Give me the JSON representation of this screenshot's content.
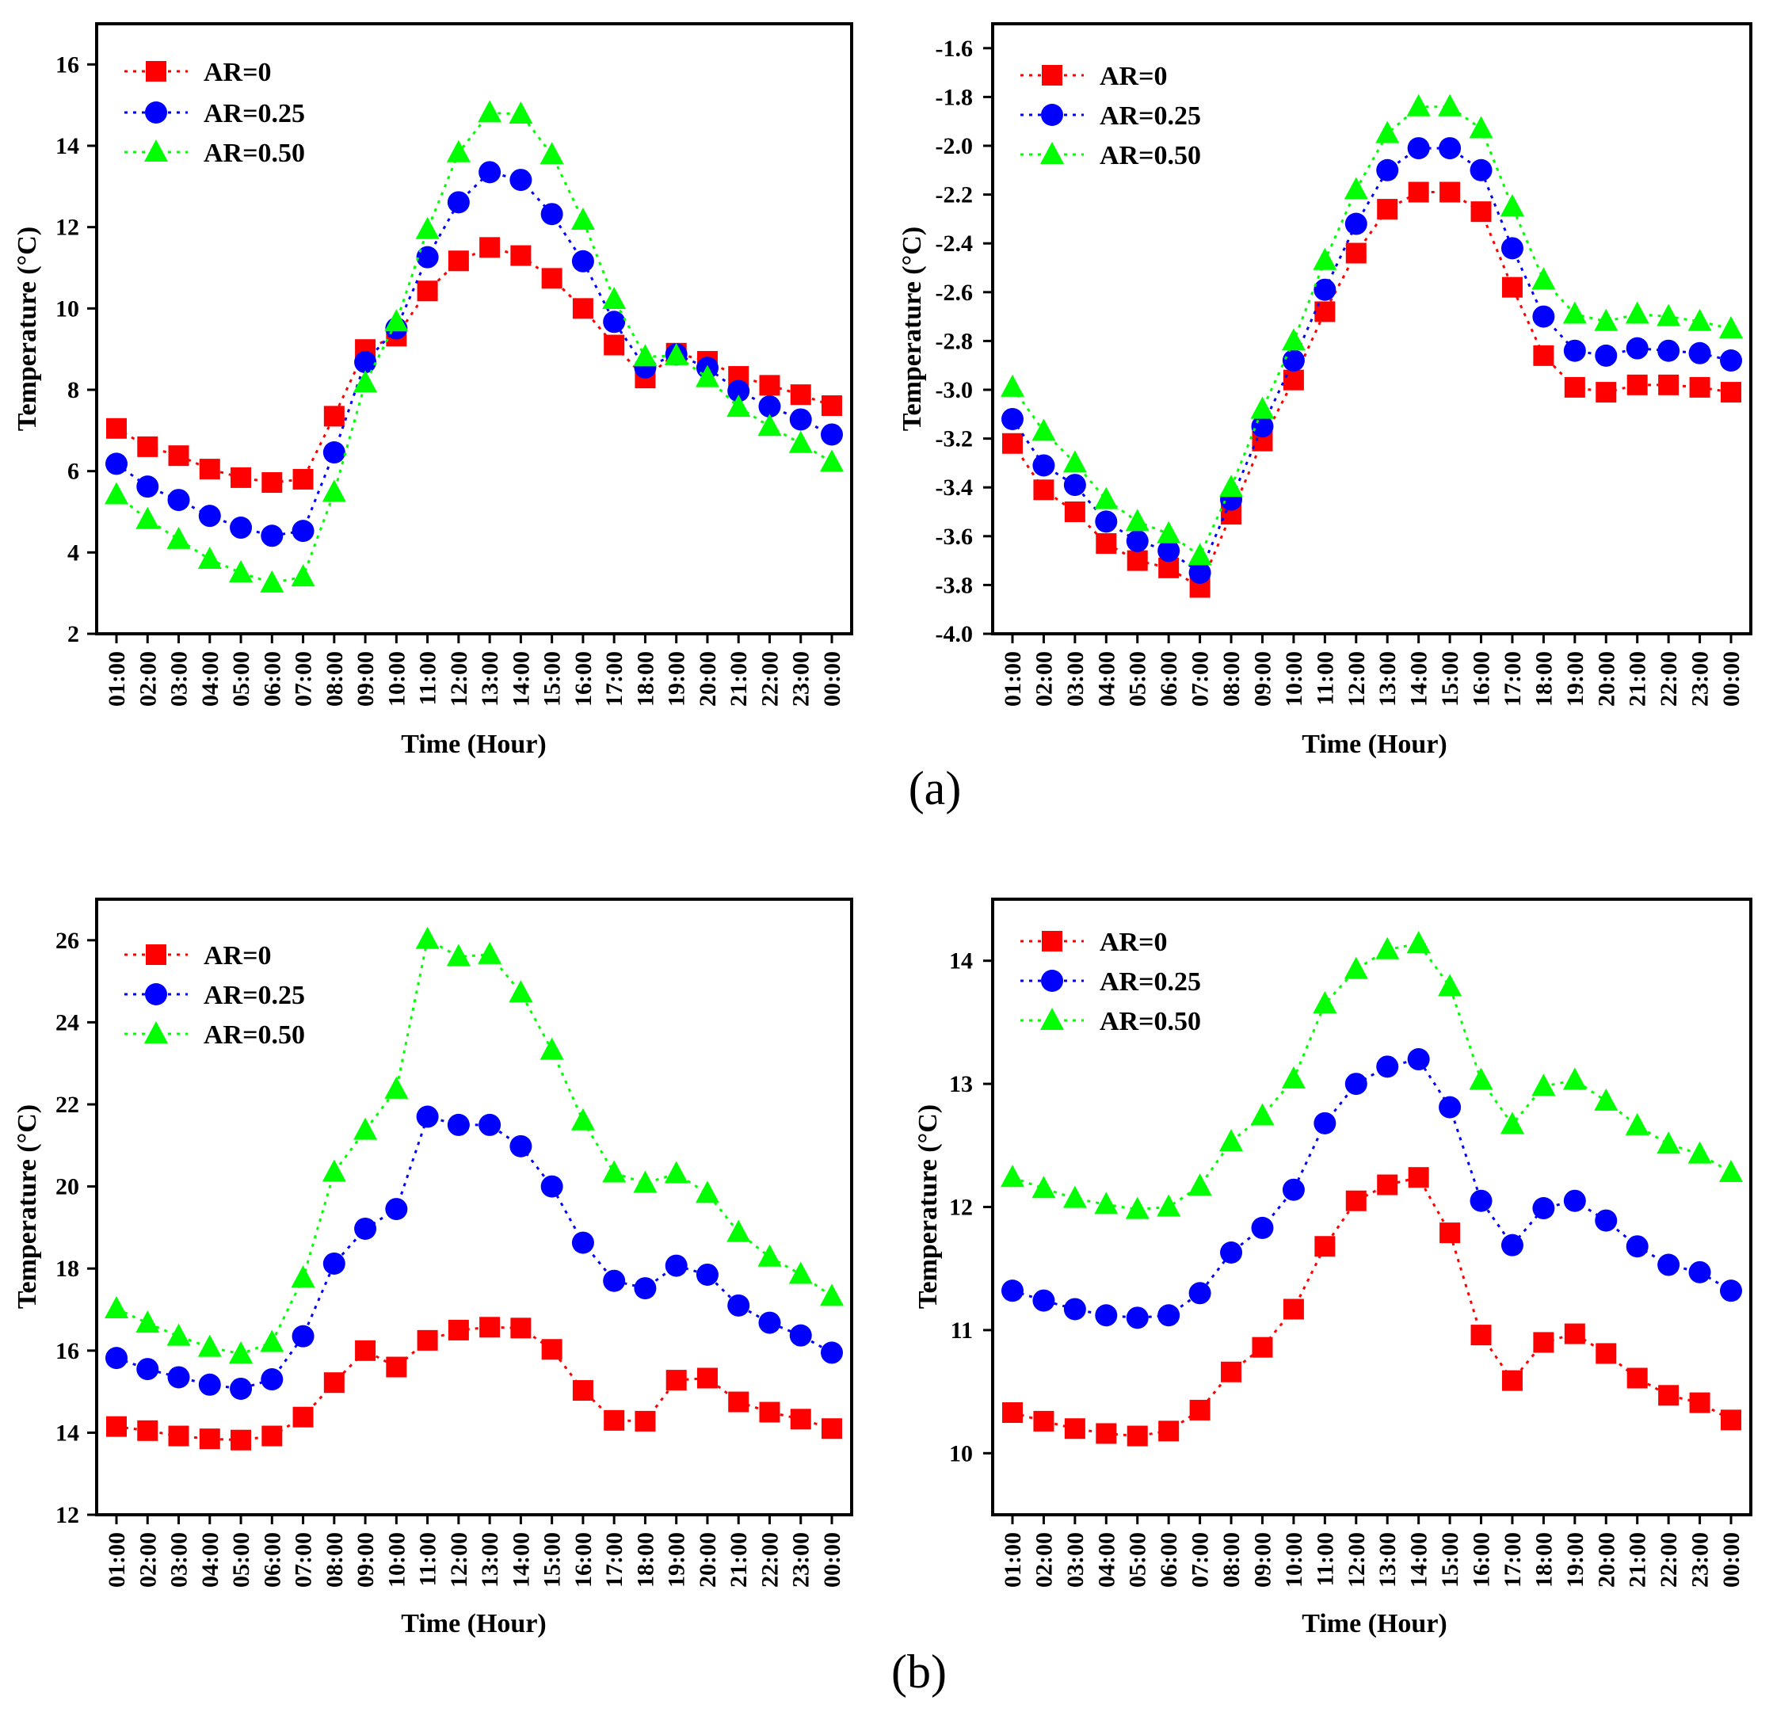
{
  "colors": {
    "ar0": "#ff0000",
    "ar025": "#0000ff",
    "ar050": "#00ff00",
    "axis": "#000000"
  },
  "panel_labels": {
    "a": "(a)",
    "b": "(b)"
  },
  "chart_data": [
    {
      "type": "line",
      "panel": "(a) left",
      "title": "",
      "xlabel": "Time (Hour)",
      "ylabel": "Temperature (°C)",
      "ylim": [
        2,
        17
      ],
      "yticks": [
        2,
        4,
        6,
        8,
        10,
        12,
        14,
        16
      ],
      "ytick_labels": [
        "2",
        "4",
        "6",
        "8",
        "10",
        "12",
        "14",
        "16"
      ],
      "legend_position": "top-left",
      "categories": [
        "01:00",
        "02:00",
        "03:00",
        "04:00",
        "05:00",
        "06:00",
        "07:00",
        "08:00",
        "09:00",
        "10:00",
        "11:00",
        "12:00",
        "13:00",
        "14:00",
        "15:00",
        "16:00",
        "17:00",
        "18:00",
        "19:00",
        "20:00",
        "21:00",
        "22:00",
        "23:00",
        "00:00"
      ],
      "series": [
        {
          "name": "AR=0",
          "marker": "square",
          "values": [
            7.05,
            6.6,
            6.38,
            6.05,
            5.84,
            5.72,
            5.8,
            7.35,
            8.99,
            9.32,
            10.43,
            11.17,
            11.5,
            11.3,
            10.74,
            10.0,
            9.1,
            8.29,
            8.9,
            8.7,
            8.33,
            8.11,
            7.88,
            7.61
          ]
        },
        {
          "name": "AR=0.25",
          "marker": "circle",
          "values": [
            6.18,
            5.62,
            5.29,
            4.9,
            4.61,
            4.41,
            4.53,
            6.46,
            8.68,
            9.51,
            11.26,
            12.61,
            13.35,
            13.16,
            12.32,
            11.16,
            9.67,
            8.55,
            8.87,
            8.54,
            7.97,
            7.59,
            7.27,
            6.9
          ]
        },
        {
          "name": "AR=0.50",
          "marker": "triangle",
          "values": [
            5.42,
            4.81,
            4.32,
            3.83,
            3.5,
            3.25,
            3.4,
            5.48,
            8.17,
            9.67,
            11.94,
            13.83,
            14.81,
            14.78,
            13.78,
            12.17,
            10.22,
            8.81,
            8.84,
            8.3,
            7.57,
            7.1,
            6.68,
            6.22
          ]
        }
      ]
    },
    {
      "type": "line",
      "panel": "(a) right",
      "title": "",
      "xlabel": "Time (Hour)",
      "ylabel": "Temperature (°C)",
      "ylim": [
        -4.0,
        -1.5
      ],
      "yticks": [
        -4.0,
        -3.8,
        -3.6,
        -3.4,
        -3.2,
        -3.0,
        -2.8,
        -2.6,
        -2.4,
        -2.2,
        -2.0,
        -1.8,
        -1.6
      ],
      "ytick_labels": [
        "-4.0",
        "-3.8",
        "-3.6",
        "-3.4",
        "-3.2",
        "-3.0",
        "-2.8",
        "-2.6",
        "-2.4",
        "-2.2",
        "-2.0",
        "-1.8",
        "-1.6"
      ],
      "legend_position": "top-left",
      "categories": [
        "01:00",
        "02:00",
        "03:00",
        "04:00",
        "05:00",
        "06:00",
        "07:00",
        "08:00",
        "09:00",
        "10:00",
        "11:00",
        "12:00",
        "13:00",
        "14:00",
        "15:00",
        "16:00",
        "17:00",
        "18:00",
        "19:00",
        "20:00",
        "21:00",
        "22:00",
        "23:00",
        "00:00"
      ],
      "series": [
        {
          "name": "AR=0",
          "marker": "square",
          "values": [
            -3.22,
            -3.41,
            -3.5,
            -3.63,
            -3.7,
            -3.73,
            -3.81,
            -3.51,
            -3.21,
            -2.96,
            -2.68,
            -2.44,
            -2.26,
            -2.19,
            -2.19,
            -2.27,
            -2.58,
            -2.86,
            -2.99,
            -3.01,
            -2.98,
            -2.98,
            -2.99,
            -3.01
          ]
        },
        {
          "name": "AR=0.25",
          "marker": "circle",
          "values": [
            -3.12,
            -3.31,
            -3.39,
            -3.54,
            -3.62,
            -3.66,
            -3.75,
            -3.45,
            -3.15,
            -2.88,
            -2.59,
            -2.32,
            -2.1,
            -2.01,
            -2.01,
            -2.1,
            -2.42,
            -2.7,
            -2.84,
            -2.86,
            -2.83,
            -2.84,
            -2.85,
            -2.88
          ]
        },
        {
          "name": "AR=0.50",
          "marker": "triangle",
          "values": [
            -2.99,
            -3.17,
            -3.3,
            -3.45,
            -3.54,
            -3.59,
            -3.68,
            -3.4,
            -3.08,
            -2.8,
            -2.47,
            -2.18,
            -1.95,
            -1.84,
            -1.84,
            -1.93,
            -2.25,
            -2.55,
            -2.69,
            -2.72,
            -2.69,
            -2.7,
            -2.72,
            -2.75
          ]
        }
      ]
    },
    {
      "type": "line",
      "panel": "(b) left",
      "title": "",
      "xlabel": "Time (Hour)",
      "ylabel": "Temperature (°C)",
      "ylim": [
        12,
        27
      ],
      "yticks": [
        12,
        14,
        16,
        18,
        20,
        22,
        24,
        26
      ],
      "ytick_labels": [
        "12",
        "14",
        "16",
        "18",
        "20",
        "22",
        "24",
        "26"
      ],
      "legend_position": "top-left",
      "categories": [
        "01:00",
        "02:00",
        "03:00",
        "04:00",
        "05:00",
        "06:00",
        "07:00",
        "08:00",
        "09:00",
        "10:00",
        "11:00",
        "12:00",
        "13:00",
        "14:00",
        "15:00",
        "16:00",
        "17:00",
        "18:00",
        "19:00",
        "20:00",
        "21:00",
        "22:00",
        "23:00",
        "00:00"
      ],
      "series": [
        {
          "name": "AR=0",
          "marker": "square",
          "values": [
            14.15,
            14.05,
            13.92,
            13.85,
            13.82,
            13.92,
            14.38,
            15.22,
            16.0,
            15.6,
            16.25,
            16.5,
            16.57,
            16.55,
            16.03,
            15.03,
            14.3,
            14.28,
            15.28,
            15.33,
            14.75,
            14.5,
            14.33,
            14.1
          ]
        },
        {
          "name": "AR=0.25",
          "marker": "circle",
          "values": [
            15.82,
            15.55,
            15.35,
            15.17,
            15.07,
            15.3,
            16.35,
            18.12,
            18.97,
            19.45,
            21.7,
            21.5,
            21.5,
            20.98,
            20.0,
            18.63,
            17.7,
            17.52,
            18.07,
            17.85,
            17.1,
            16.68,
            16.37,
            15.95
          ]
        },
        {
          "name": "AR=0.50",
          "marker": "triangle",
          "values": [
            17.02,
            16.67,
            16.35,
            16.08,
            15.92,
            16.2,
            17.77,
            20.35,
            21.37,
            22.37,
            26.02,
            25.6,
            25.65,
            24.72,
            23.32,
            21.6,
            20.33,
            20.08,
            20.31,
            19.83,
            18.88,
            18.28,
            17.86,
            17.32
          ]
        }
      ]
    },
    {
      "type": "line",
      "panel": "(b) right",
      "title": "",
      "xlabel": "Time (Hour)",
      "ylabel": "Temperature (°C)",
      "ylim": [
        9.5,
        14.5
      ],
      "yticks": [
        10,
        11,
        12,
        13,
        14
      ],
      "ytick_labels": [
        "10",
        "11",
        "12",
        "13",
        "14"
      ],
      "legend_position": "top-left",
      "categories": [
        "01:00",
        "02:00",
        "03:00",
        "04:00",
        "05:00",
        "06:00",
        "07:00",
        "08:00",
        "09:00",
        "10:00",
        "11:00",
        "12:00",
        "13:00",
        "14:00",
        "15:00",
        "16:00",
        "17:00",
        "18:00",
        "19:00",
        "20:00",
        "21:00",
        "22:00",
        "23:00",
        "00:00"
      ],
      "series": [
        {
          "name": "AR=0",
          "marker": "square",
          "values": [
            10.33,
            10.26,
            10.2,
            10.16,
            10.14,
            10.18,
            10.35,
            10.66,
            10.86,
            11.17,
            11.68,
            12.05,
            12.18,
            12.24,
            11.79,
            10.96,
            10.59,
            10.9,
            10.97,
            10.81,
            10.61,
            10.47,
            10.41,
            10.27
          ]
        },
        {
          "name": "AR=0.25",
          "marker": "circle",
          "values": [
            11.32,
            11.24,
            11.17,
            11.12,
            11.1,
            11.12,
            11.3,
            11.63,
            11.83,
            12.14,
            12.68,
            13.0,
            13.14,
            13.2,
            12.81,
            12.05,
            11.69,
            11.99,
            12.05,
            11.89,
            11.68,
            11.53,
            11.47,
            11.32
          ]
        },
        {
          "name": "AR=0.50",
          "marker": "triangle",
          "values": [
            12.24,
            12.15,
            12.07,
            12.02,
            11.98,
            12.0,
            12.17,
            12.53,
            12.74,
            13.04,
            13.65,
            13.93,
            14.09,
            14.14,
            13.79,
            13.03,
            12.67,
            12.98,
            13.03,
            12.86,
            12.66,
            12.51,
            12.43,
            12.28
          ]
        }
      ]
    }
  ]
}
